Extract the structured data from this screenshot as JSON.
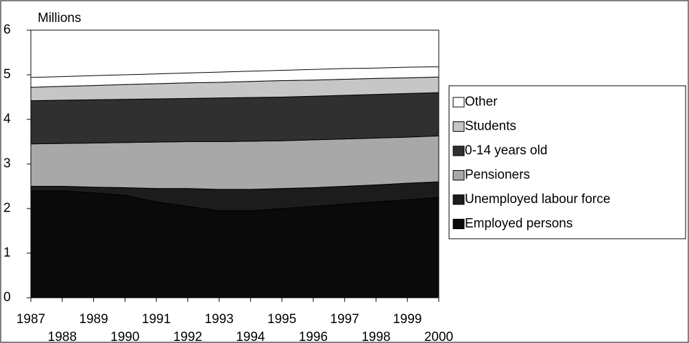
{
  "chart_data": {
    "type": "stacked_area",
    "y_label": "Millions",
    "categories": [
      "1987",
      "1988",
      "1989",
      "1990",
      "1991",
      "1992",
      "1993",
      "1994",
      "1995",
      "1996",
      "1997",
      "1998",
      "1999",
      "2000"
    ],
    "ylim": [
      0,
      6
    ],
    "yticks": [
      0,
      1,
      2,
      3,
      4,
      5,
      6
    ],
    "legend": "right",
    "series": [
      {
        "name": "Employed persons",
        "color": "#0a0a0a",
        "values": [
          2.4,
          2.4,
          2.35,
          2.3,
          2.15,
          2.05,
          1.95,
          1.95,
          2.0,
          2.05,
          2.1,
          2.15,
          2.2,
          2.25
        ]
      },
      {
        "name": "Unemployed labour force",
        "color": "#1c1c1c",
        "values": [
          0.1,
          0.1,
          0.13,
          0.17,
          0.3,
          0.4,
          0.48,
          0.48,
          0.45,
          0.42,
          0.4,
          0.38,
          0.37,
          0.35
        ]
      },
      {
        "name": "Pensioners",
        "color": "#a8a8a8",
        "values": [
          0.95,
          0.96,
          0.99,
          1.01,
          1.04,
          1.05,
          1.07,
          1.08,
          1.07,
          1.07,
          1.06,
          1.05,
          1.03,
          1.03
        ]
      },
      {
        "name": "0-14 years old",
        "color": "#303030",
        "values": [
          0.97,
          0.97,
          0.97,
          0.97,
          0.97,
          0.97,
          0.98,
          0.98,
          0.98,
          0.98,
          0.98,
          0.98,
          0.98,
          0.97
        ]
      },
      {
        "name": "Students",
        "color": "#c6c6c6",
        "values": [
          0.3,
          0.31,
          0.32,
          0.33,
          0.34,
          0.35,
          0.35,
          0.36,
          0.37,
          0.36,
          0.36,
          0.36,
          0.35,
          0.35
        ]
      },
      {
        "name": "Other",
        "color": "#ffffff",
        "values": [
          0.22,
          0.22,
          0.22,
          0.22,
          0.22,
          0.22,
          0.23,
          0.23,
          0.23,
          0.24,
          0.24,
          0.23,
          0.24,
          0.23
        ]
      }
    ]
  }
}
